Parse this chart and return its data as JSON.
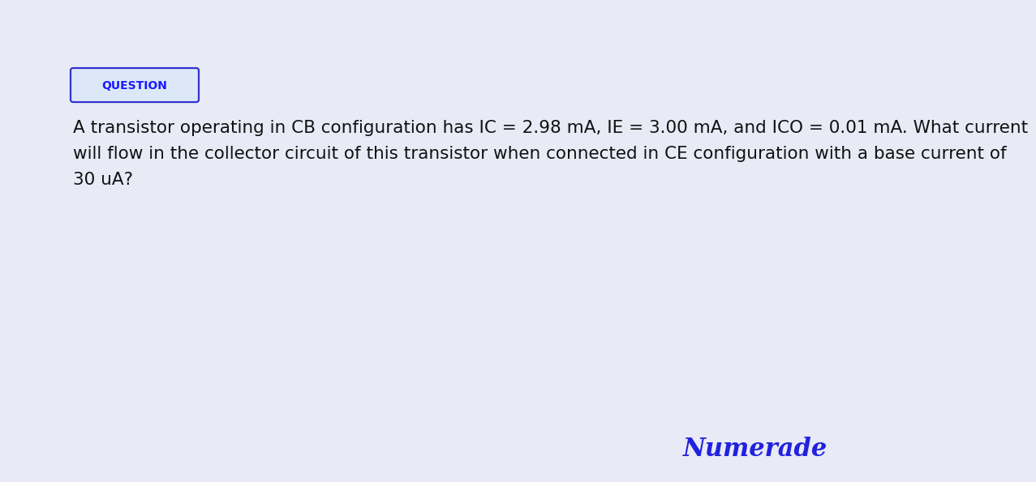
{
  "background_color": "#e8eaf6",
  "question_label": "QUESTION",
  "question_label_color": "#1a1aff",
  "question_label_bg": "#dce8f8",
  "question_label_border": "#3333cc",
  "text_line1": "A transistor operating in CB configuration has IC = 2.98 mA, IE = 3.00 mA, and ICO = 0.01 mA. What current",
  "text_line2": "will flow in the collector circuit of this transistor when connected in CE configuration with a base current of",
  "text_line3": "30 uA?",
  "text_color": "#111111",
  "text_fontsize": 15.5,
  "logo_text": "Numerade",
  "logo_color": "#2222dd",
  "logo_fontsize": 22
}
